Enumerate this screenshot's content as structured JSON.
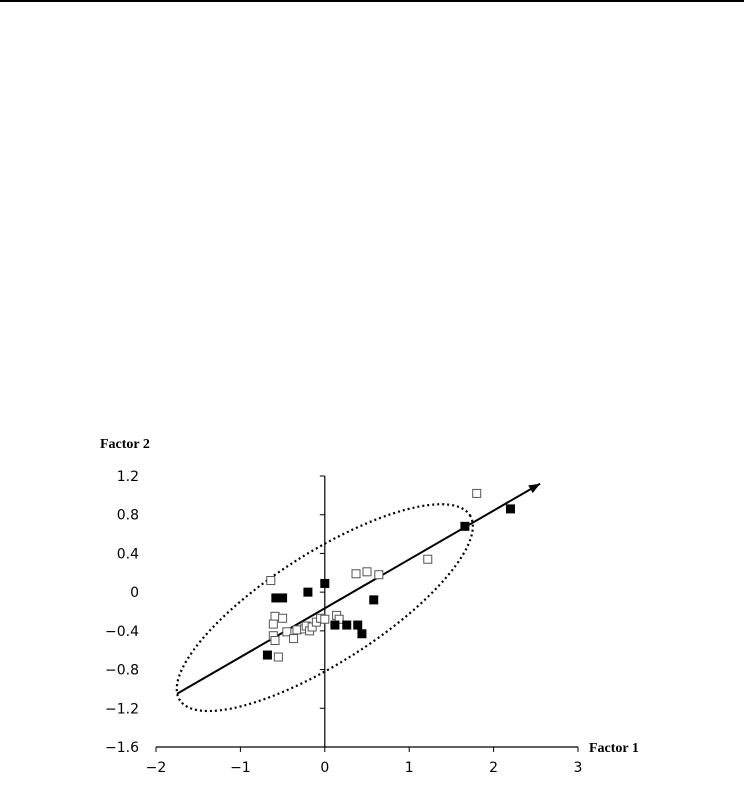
{
  "chart_data": {
    "type": "scatter",
    "title": "",
    "xlabel": "Factor 1",
    "ylabel": "Factor 2",
    "xlim": [
      -2,
      3
    ],
    "ylim": [
      -1.6,
      1.2
    ],
    "x_ticks": [
      "−2",
      "−1",
      "0",
      "1",
      "2",
      "3"
    ],
    "y_ticks": [
      "1.2",
      "0.8",
      "0.4",
      "0",
      "−0.4",
      "−0.8",
      "−1.2",
      "−1.6"
    ],
    "grid": false,
    "legend": "none",
    "series": [
      {
        "marker": "open-square",
        "color": "#000000",
        "points": [
          [
            1.8,
            1.02
          ],
          [
            1.22,
            0.34
          ],
          [
            0.64,
            0.18
          ],
          [
            0.5,
            0.21
          ],
          [
            0.37,
            0.19
          ],
          [
            -0.64,
            0.12
          ],
          [
            -0.59,
            -0.25
          ],
          [
            -0.5,
            -0.27
          ],
          [
            -0.61,
            -0.33
          ],
          [
            -0.61,
            -0.45
          ],
          [
            -0.59,
            -0.5
          ],
          [
            -0.45,
            -0.41
          ],
          [
            -0.33,
            -0.39
          ],
          [
            -0.37,
            -0.48
          ],
          [
            -0.24,
            -0.38
          ],
          [
            -0.22,
            -0.35
          ],
          [
            -0.18,
            -0.4
          ],
          [
            -0.15,
            -0.36
          ],
          [
            -0.1,
            -0.31
          ],
          [
            -0.05,
            -0.27
          ],
          [
            0.0,
            -0.28
          ],
          [
            0.14,
            -0.24
          ],
          [
            0.17,
            -0.28
          ],
          [
            -0.55,
            -0.67
          ]
        ]
      },
      {
        "marker": "filled-square",
        "color": "#000000",
        "points": [
          [
            2.2,
            0.86
          ],
          [
            1.66,
            0.68
          ],
          [
            0.0,
            0.09
          ],
          [
            -0.2,
            0.0
          ],
          [
            0.58,
            -0.08
          ],
          [
            -0.5,
            -0.06
          ],
          [
            -0.58,
            -0.06
          ],
          [
            0.12,
            -0.34
          ],
          [
            0.26,
            -0.34
          ],
          [
            0.39,
            -0.34
          ],
          [
            0.44,
            -0.43
          ],
          [
            -0.68,
            -0.65
          ]
        ]
      }
    ],
    "annotations": [
      {
        "type": "arrow",
        "from": [
          -1.75,
          -1.05
        ],
        "to": [
          2.55,
          1.12
        ]
      },
      {
        "type": "dotted-ellipse",
        "center": [
          0.0,
          -0.16
        ],
        "note": ""
      }
    ]
  }
}
